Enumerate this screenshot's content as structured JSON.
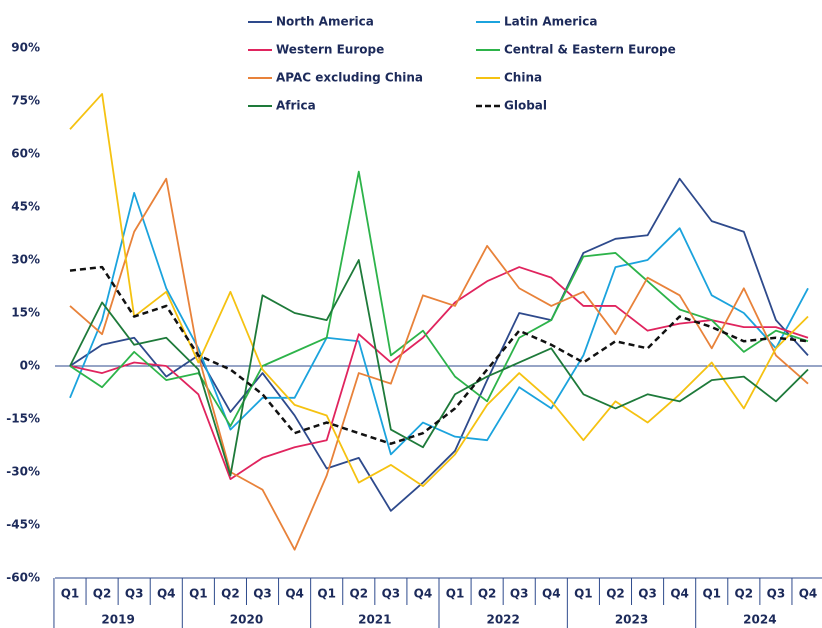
{
  "chart_data": {
    "type": "line",
    "categories": [
      "Q1",
      "Q2",
      "Q3",
      "Q4",
      "Q1",
      "Q2",
      "Q3",
      "Q4",
      "Q1",
      "Q2",
      "Q3",
      "Q4",
      "Q1",
      "Q2",
      "Q3",
      "Q4",
      "Q1",
      "Q2",
      "Q3",
      "Q4",
      "Q1",
      "Q2",
      "Q3",
      "Q4"
    ],
    "category_groups": [
      "2019",
      "2020",
      "2021",
      "2022",
      "2023",
      "2024"
    ],
    "ylim": [
      -60,
      90
    ],
    "yticks": [
      {
        "value": -60,
        "label": "-60%"
      },
      {
        "value": -45,
        "label": "-45%"
      },
      {
        "value": -30,
        "label": "-30%"
      },
      {
        "value": -15,
        "label": "-15%"
      },
      {
        "value": 0,
        "label": "0%"
      },
      {
        "value": 15,
        "label": "15%"
      },
      {
        "value": 30,
        "label": "30%"
      },
      {
        "value": 45,
        "label": "45%"
      },
      {
        "value": 60,
        "label": "60%"
      },
      {
        "value": 75,
        "label": "75%"
      },
      {
        "value": 90,
        "label": "90%"
      }
    ],
    "zero_line": true,
    "series": [
      {
        "name": "North America",
        "color": "#2e4a8c",
        "values": [
          0,
          6,
          8,
          -3,
          3,
          -13,
          -2,
          -14,
          -29,
          -26,
          -41,
          -33,
          -24,
          -4,
          15,
          13,
          32,
          36,
          37,
          53,
          41,
          38,
          13,
          3
        ]
      },
      {
        "name": "Latin America",
        "color": "#1ba3dd",
        "values": [
          -9,
          13,
          49,
          22,
          5,
          -18,
          -9,
          -9,
          8,
          7,
          -25,
          -16,
          -20,
          -21,
          -6,
          -12,
          3,
          28,
          30,
          39,
          20,
          15,
          5,
          22
        ]
      },
      {
        "name": "Western Europe",
        "color": "#e0245e",
        "values": [
          0,
          -2,
          1,
          0,
          -8,
          -32,
          -26,
          -23,
          -21,
          9,
          1,
          8,
          18,
          24,
          28,
          25,
          17,
          17,
          10,
          12,
          13,
          11,
          11,
          8
        ]
      },
      {
        "name": "Central & Eastern Europe",
        "color": "#2db34a",
        "values": [
          0,
          -6,
          4,
          -4,
          -2,
          -17,
          0,
          4,
          8,
          55,
          3,
          10,
          -3,
          -10,
          8,
          13,
          31,
          32,
          24,
          16,
          13,
          4,
          10,
          7
        ]
      },
      {
        "name": "APAC excluding China",
        "color": "#e8823a",
        "values": [
          17,
          9,
          38,
          53,
          3,
          -30,
          -35,
          -52,
          -31,
          -2,
          -5,
          20,
          17,
          34,
          22,
          17,
          21,
          9,
          25,
          20,
          5,
          22,
          3,
          -5
        ]
      },
      {
        "name": "China",
        "color": "#f5c211",
        "values": [
          67,
          77,
          14,
          21,
          1,
          21,
          -1,
          -11,
          -14,
          -33,
          -28,
          -34,
          -25,
          -11,
          -2,
          -10,
          -21,
          -10,
          -16,
          -8,
          1,
          -12,
          5,
          14
        ]
      },
      {
        "name": "Africa",
        "color": "#1e7a3a",
        "values": [
          0,
          18,
          6,
          8,
          -1,
          -31,
          20,
          15,
          13,
          30,
          -18,
          -23,
          -8,
          -3,
          1,
          5,
          -8,
          -12,
          -8,
          -10,
          -4,
          -3,
          -10,
          -1
        ]
      },
      {
        "name": "Global",
        "color": "#111111",
        "dash": true,
        "values": [
          27,
          28,
          14,
          17,
          3,
          -1,
          -8,
          -19,
          -16,
          -19,
          -22,
          -19,
          -12,
          -1,
          10,
          6,
          1,
          7,
          5,
          14,
          11,
          7,
          8,
          7
        ]
      }
    ]
  }
}
